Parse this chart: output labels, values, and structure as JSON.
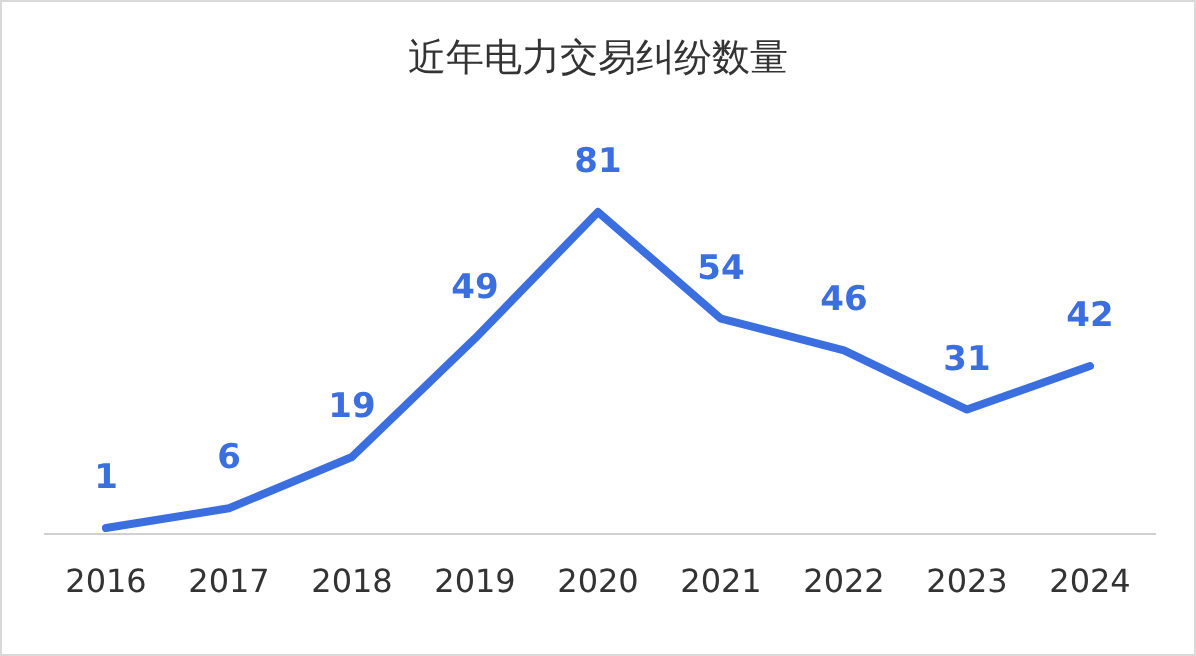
{
  "chart_data": {
    "type": "line",
    "title": "近年电力交易纠纷数量",
    "categories": [
      "2016",
      "2017",
      "2018",
      "2019",
      "2020",
      "2021",
      "2022",
      "2023",
      "2024"
    ],
    "values": [
      1,
      6,
      19,
      49,
      81,
      54,
      46,
      31,
      42
    ],
    "color": "#3b6fe0",
    "data_labels": true
  }
}
